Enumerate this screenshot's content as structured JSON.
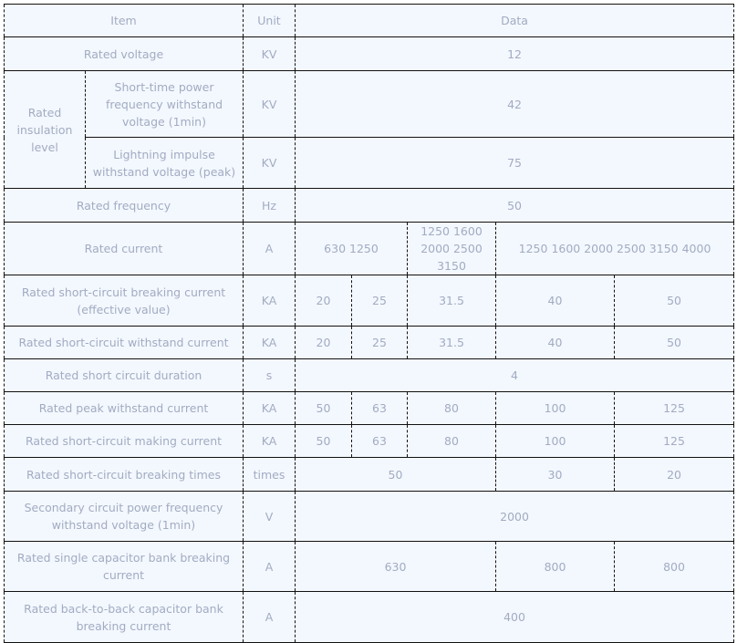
{
  "header": {
    "item": "Item",
    "unit": "Unit",
    "data": "Data"
  },
  "rows": {
    "rated_voltage": {
      "label": "Rated voltage",
      "unit": "KV",
      "value": "12"
    },
    "insulation": {
      "label": "Rated insulation level",
      "short_time": {
        "label": "Short-time power frequency withstand voltage (1min)",
        "unit": "KV",
        "value": "42"
      },
      "lightning": {
        "label": "Lightning impulse withstand voltage (peak)",
        "unit": "KV",
        "value": "75"
      }
    },
    "rated_frequency": {
      "label": "Rated frequency",
      "unit": "Hz",
      "value": "50"
    },
    "rated_current": {
      "label": "Rated current",
      "unit": "A",
      "values": [
        "630 1250",
        "1250 1600 2000 2500 3150",
        "1250 1600 2000 2500 3150 4000"
      ]
    },
    "breaking_current": {
      "label": "Rated short-circuit breaking current (effective value)",
      "unit": "KA",
      "values": [
        "20",
        "25",
        "31.5",
        "40",
        "50"
      ]
    },
    "withstand_current": {
      "label": "Rated short-circuit withstand current",
      "unit": "KA",
      "values": [
        "20",
        "25",
        "31.5",
        "40",
        "50"
      ]
    },
    "duration": {
      "label": "Rated short circuit duration",
      "unit": "s",
      "value": "4"
    },
    "peak_withstand": {
      "label": "Rated peak withstand current",
      "unit": "KA",
      "values": [
        "50",
        "63",
        "80",
        "100",
        "125"
      ]
    },
    "making_current": {
      "label": "Rated short-circuit making current",
      "unit": "KA",
      "values": [
        "50",
        "63",
        "80",
        "100",
        "125"
      ]
    },
    "breaking_times": {
      "label": "Rated short-circuit breaking times",
      "unit": "times",
      "values": [
        "50",
        "30",
        "20"
      ]
    },
    "secondary": {
      "label": "Secondary circuit power frequency withstand voltage (1min)",
      "unit": "V",
      "value": "2000"
    },
    "single_cap": {
      "label": "Rated single capacitor bank breaking current",
      "unit": "A",
      "values": [
        "630",
        "800",
        "800"
      ]
    },
    "back_to_back": {
      "label": "Rated back-to-back capacitor bank breaking current",
      "unit": "A",
      "value": "400"
    }
  }
}
